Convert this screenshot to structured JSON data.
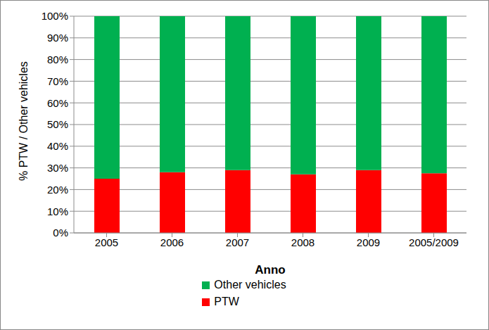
{
  "chart_data": {
    "type": "bar",
    "stacked": true,
    "x_label": "Anno",
    "y_label": "% PTW / Other vehicles",
    "categories": [
      "2005",
      "2006",
      "2007",
      "2008",
      "2009",
      "2005/2009"
    ],
    "series": [
      {
        "name": "Other vehicles",
        "color": "#00b050",
        "values": [
          75,
          72,
          71,
          73,
          71,
          72.5
        ]
      },
      {
        "name": "PTW",
        "color": "#ff0000",
        "values": [
          25,
          28,
          29,
          27,
          29,
          27.5
        ]
      }
    ],
    "ylim": [
      0,
      100
    ],
    "yticks": [
      {
        "value": 0,
        "label": "0%"
      },
      {
        "value": 10,
        "label": "10%"
      },
      {
        "value": 20,
        "label": "20%"
      },
      {
        "value": 30,
        "label": "30%"
      },
      {
        "value": 40,
        "label": "40%"
      },
      {
        "value": 50,
        "label": "50%"
      },
      {
        "value": 60,
        "label": "60%"
      },
      {
        "value": 70,
        "label": "70%"
      },
      {
        "value": 80,
        "label": "80%"
      },
      {
        "value": 90,
        "label": "90%"
      },
      {
        "value": 100,
        "label": "100%"
      }
    ],
    "grid": true,
    "legend": "bottom"
  }
}
